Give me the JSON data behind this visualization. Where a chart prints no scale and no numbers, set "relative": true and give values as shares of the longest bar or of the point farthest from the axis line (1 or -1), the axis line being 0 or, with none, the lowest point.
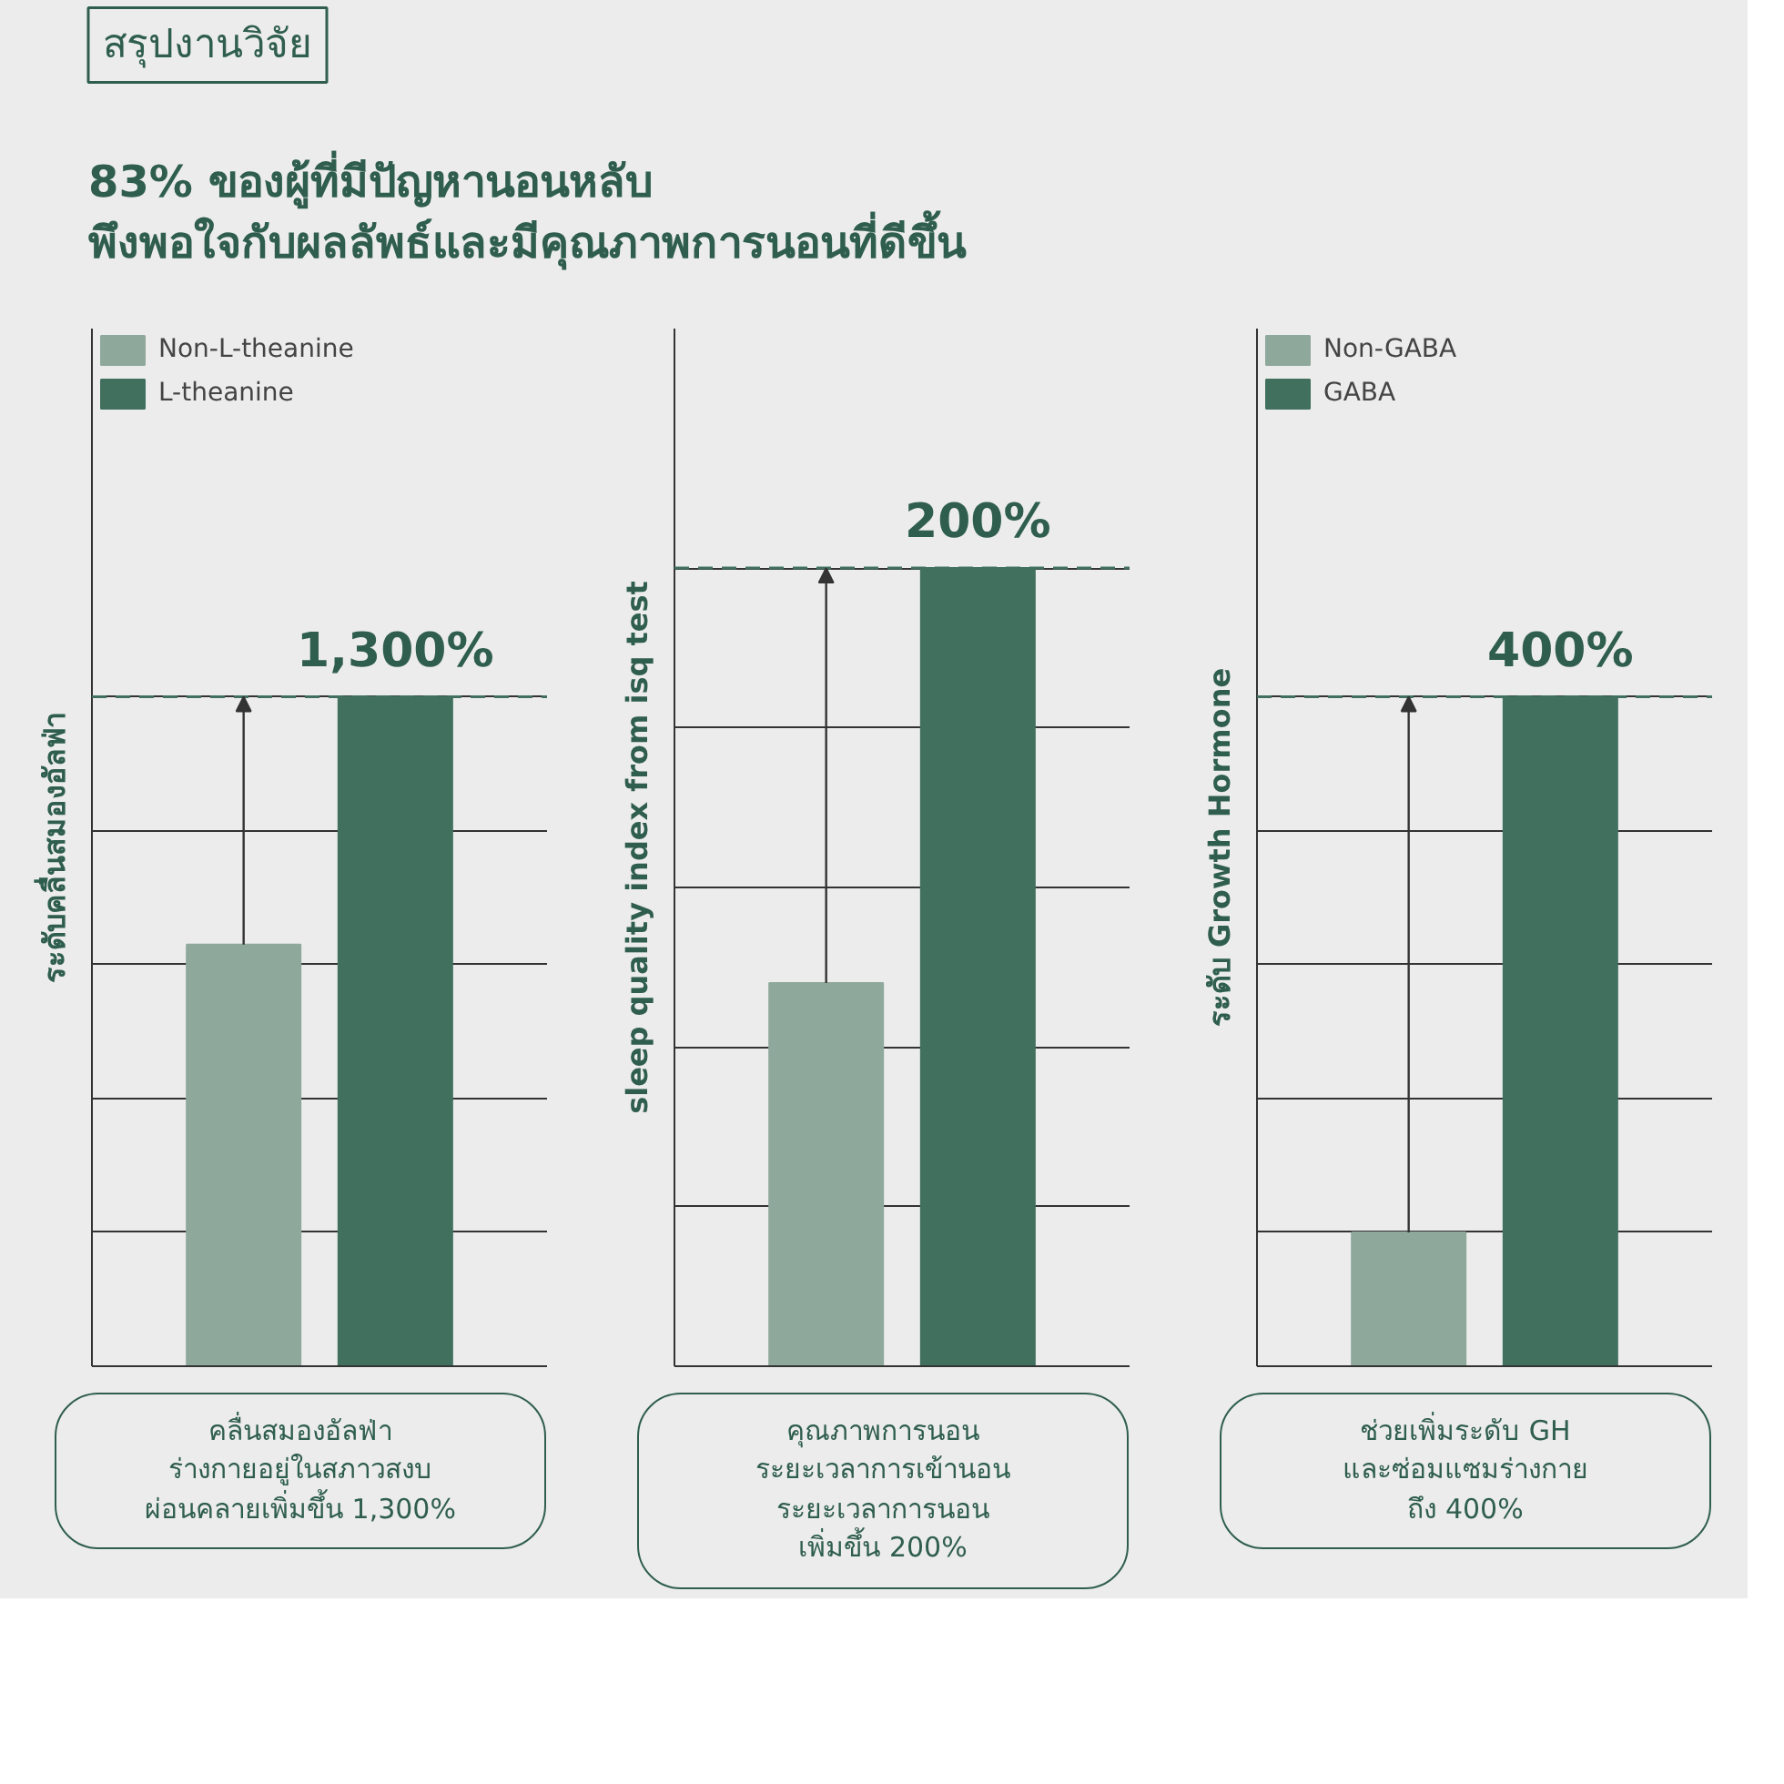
{
  "chart_data": [
    {
      "type": "other",
      "title": "สรุปงานวิจัย",
      "subtitle": "83% ของผู้ที่มีปัญหานอนหลับ\nพึงพอใจกับผลลัพธ์และมีคุณภาพการนอนที่ดีขึ้น"
    },
    {
      "type": "bar",
      "categories": [
        null
      ],
      "relative": true,
      "grid": "y",
      "legend": "top",
      "ylabel": "ระดับคลื่นสมองอัลฟ่า",
      "series": [
        {
          "name": "Non-L-theanine",
          "color": "#8fa89c",
          "values": [
            0.63
          ]
        },
        {
          "name": "L-theanine",
          "color": "#41705f",
          "values": [
            1
          ]
        }
      ],
      "ref_lines": [
        {
          "axis": "y",
          "value": 1,
          "line_style": "dashed",
          "color": "#41705f"
        }
      ],
      "annotations": [
        {
          "text": "1,300%",
          "y": 1
        },
        "คลื่นสมองอัลฟ่า\nร่างกายอยู่ในสภาวสงบ\nผ่อนคลายเพิ่มขึ้น 1,300%"
      ]
    },
    {
      "type": "bar",
      "categories": [
        null
      ],
      "relative": true,
      "grid": "y",
      "ylabel": "sleep quality index from isq test",
      "series": [
        {
          "color": "#8fa89c",
          "values": [
            0.48
          ]
        },
        {
          "color": "#41705f",
          "values": [
            1
          ]
        }
      ],
      "ref_lines": [
        {
          "axis": "y",
          "value": 1,
          "line_style": "dashed",
          "color": "#41705f"
        }
      ],
      "annotations": [
        {
          "text": "200%",
          "y": 1
        },
        "คุณภาพการนอน\nระยะเวลาการเข้านอน\nระยะเวลาการนอน\nเพิ่มขึ้น 200%"
      ]
    },
    {
      "type": "bar",
      "categories": [
        null
      ],
      "relative": true,
      "grid": "y",
      "legend": "top",
      "ylabel": "ระดับ Growth Hormone",
      "series": [
        {
          "name": "Non-GABA",
          "color": "#8fa89c",
          "values": [
            0.2
          ]
        },
        {
          "name": "GABA",
          "color": "#41705f",
          "values": [
            1
          ]
        }
      ],
      "ref_lines": [
        {
          "axis": "y",
          "value": 1,
          "line_style": "dashed",
          "color": "#41705f"
        }
      ],
      "annotations": [
        {
          "text": "400%",
          "y": 1
        },
        "ช่วยเพิ่มระดับ GH\nและซ่อมแซมร่างกาย\nถึง 400%"
      ]
    }
  ]
}
